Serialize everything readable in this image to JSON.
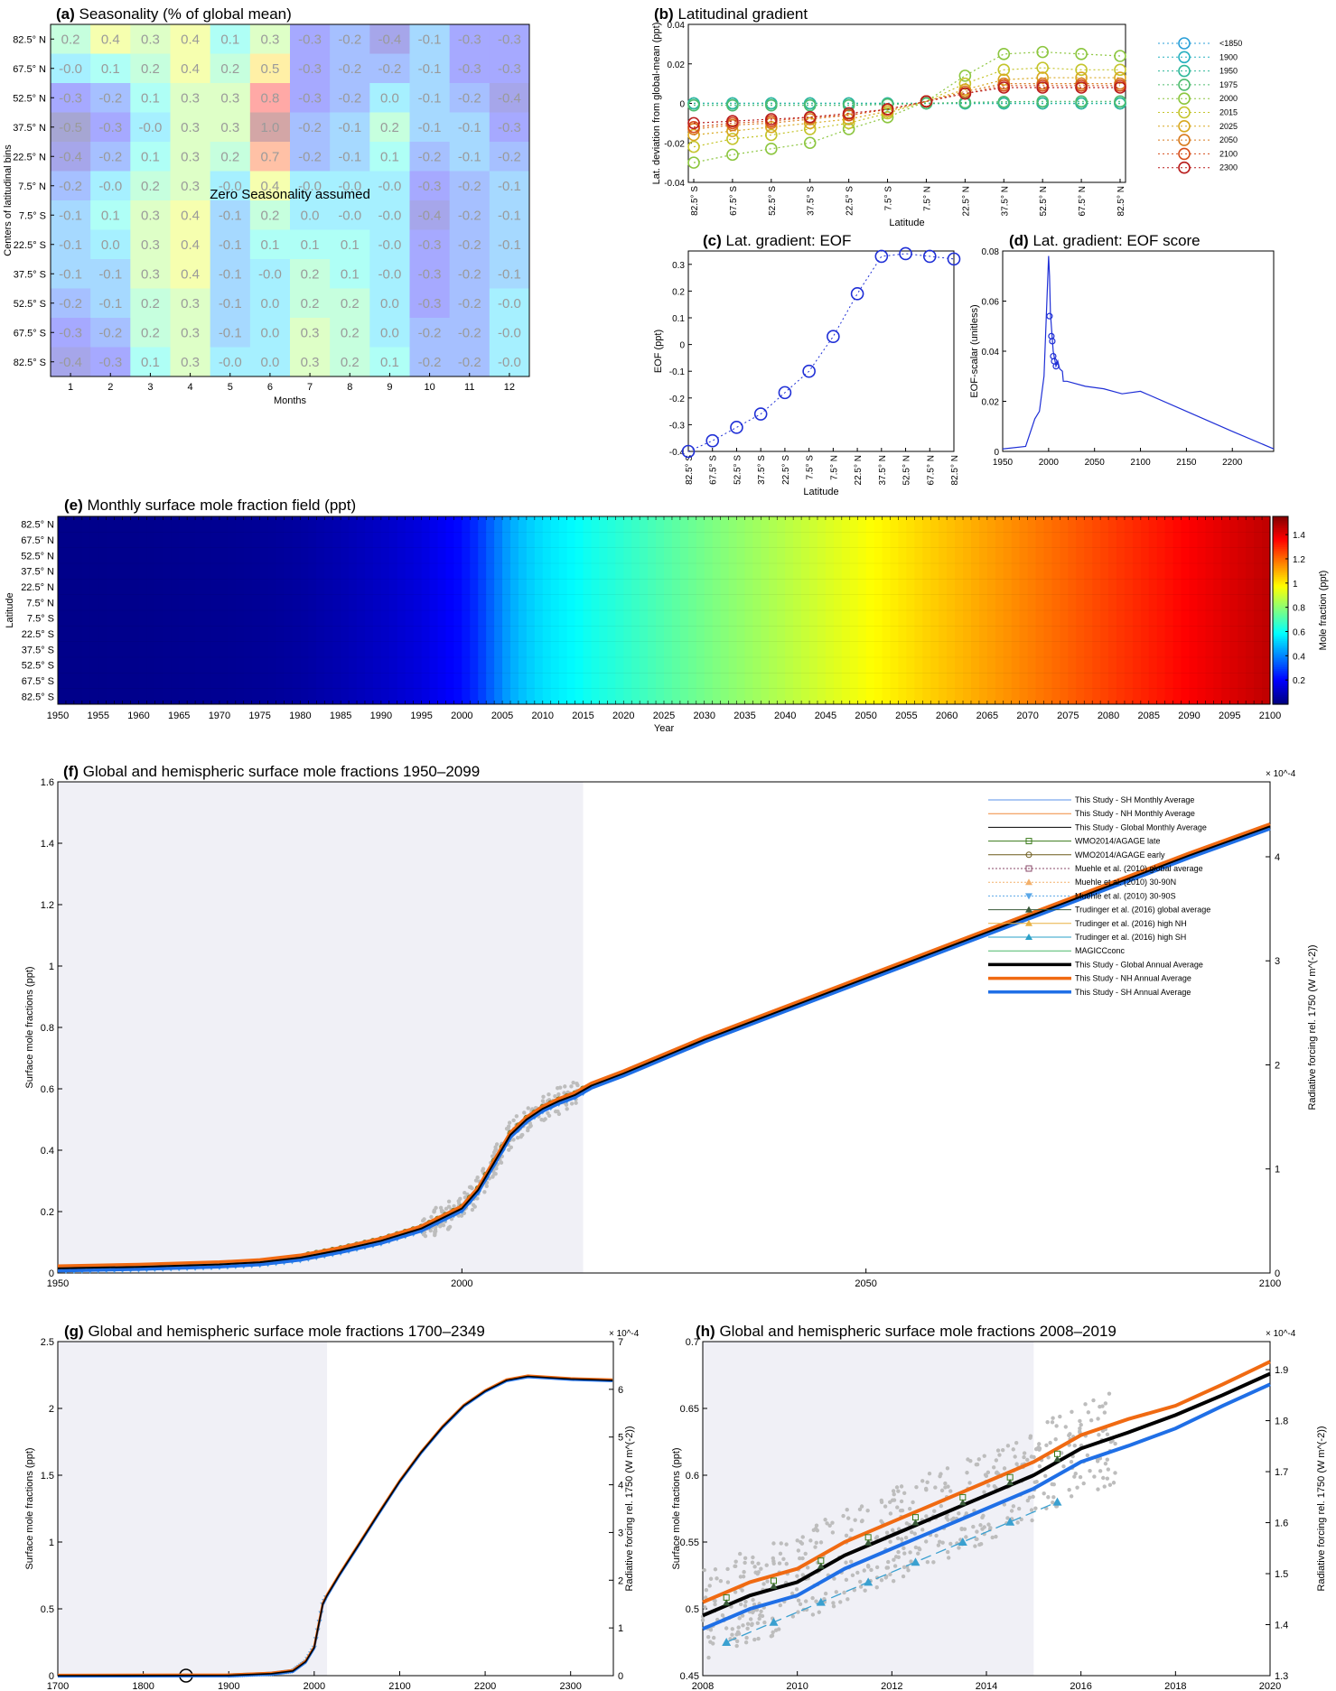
{
  "colors": {
    "his_shade": "#f0f0f6",
    "sh": "#1f6fe6",
    "nh": "#f06a12",
    "global": "#000000",
    "eof": "#1f2fd6"
  },
  "panels": {
    "a": {
      "letter": "(a)",
      "title": "Seasonality (% of global mean)",
      "xlabel": "Months",
      "ylabel": "Centers of latitudinal bins",
      "annotation": "Zero Seasonality assumed"
    },
    "b": {
      "letter": "(b)",
      "title": "Latitudinal gradient",
      "xlabel": "Latitude",
      "ylabel": "Lat. deviation from global-mean (ppt)"
    },
    "c": {
      "letter": "(c)",
      "title": "Lat. gradient: EOF",
      "xlabel": "Latitude",
      "ylabel": "EOF (ppt)"
    },
    "d": {
      "letter": "(d)",
      "title": "Lat. gradient: EOF score",
      "xlabel": "",
      "ylabel": "EOF-scalar (unitless)"
    },
    "e": {
      "letter": "(e)",
      "title": "Monthly surface mole fraction field (ppt)",
      "xlabel": "Year",
      "ylabel": "Latitude",
      "cbar_label": "Mole fraction (ppt)"
    },
    "f": {
      "letter": "(f)",
      "title": "Global and hemispheric surface mole fractions 1950–2099",
      "ylabel": "Surface mole fractions (ppt)",
      "y2label": "Radiative forcing rel. 1750 (W m^(-2))",
      "scale": "× 10^-4"
    },
    "g": {
      "letter": "(g)",
      "title": "Global and hemispheric surface mole fractions 1700–2349",
      "ylabel": "Surface mole fractions (ppt)",
      "y2label": "Radiative forcing rel. 1750 (W m^(-2))",
      "scale": "× 10^-4"
    },
    "h": {
      "letter": "(h)",
      "title": "Global and hemispheric surface mole fractions 2008–2019",
      "ylabel": "Surface mole fractions (ppt)",
      "y2label": "Radiative forcing rel. 1750 (W m^(-2))",
      "scale": "× 10^-4"
    }
  },
  "chart_data": [
    {
      "panel": "a",
      "type": "heatmap",
      "x_categories": [
        "1",
        "2",
        "3",
        "4",
        "5",
        "6",
        "7",
        "8",
        "9",
        "10",
        "11",
        "12"
      ],
      "y_categories": [
        "82.5° N",
        "67.5° N",
        "52.5° N",
        "37.5° N",
        "22.5° N",
        "7.5° N",
        "7.5° S",
        "22.5° S",
        "37.5° S",
        "52.5° S",
        "67.5° S",
        "82.5° S"
      ],
      "values": [
        [
          "0.2",
          "0.4",
          "0.3",
          "0.4",
          "0.1",
          "0.3",
          "-0.3",
          "-0.2",
          "-0.4",
          "-0.1",
          "-0.3",
          "-0.3"
        ],
        [
          "-0.0",
          "0.1",
          "0.2",
          "0.4",
          "0.2",
          "0.5",
          "-0.3",
          "-0.2",
          "-0.2",
          "-0.1",
          "-0.3",
          "-0.3"
        ],
        [
          "-0.3",
          "-0.2",
          "0.1",
          "0.3",
          "0.3",
          "0.8",
          "-0.3",
          "-0.2",
          "0.0",
          "-0.1",
          "-0.2",
          "-0.4"
        ],
        [
          "-0.5",
          "-0.3",
          "-0.0",
          "0.3",
          "0.3",
          "1.0",
          "-0.2",
          "-0.1",
          "0.2",
          "-0.1",
          "-0.1",
          "-0.3"
        ],
        [
          "-0.4",
          "-0.2",
          "0.1",
          "0.3",
          "0.2",
          "0.7",
          "-0.2",
          "-0.1",
          "0.1",
          "-0.2",
          "-0.1",
          "-0.2"
        ],
        [
          "-0.2",
          "-0.0",
          "0.2",
          "0.3",
          "-0.0",
          "0.4",
          "-0.0",
          "-0.0",
          "-0.0",
          "-0.3",
          "-0.2",
          "-0.1"
        ],
        [
          "-0.1",
          "0.1",
          "0.3",
          "0.4",
          "-0.1",
          "0.2",
          "0.0",
          "-0.0",
          "-0.0",
          "-0.4",
          "-0.2",
          "-0.1"
        ],
        [
          "-0.1",
          "0.0",
          "0.3",
          "0.4",
          "-0.1",
          "0.1",
          "0.1",
          "0.1",
          "-0.0",
          "-0.3",
          "-0.2",
          "-0.1"
        ],
        [
          "-0.1",
          "-0.1",
          "0.3",
          "0.4",
          "-0.1",
          "-0.0",
          "0.2",
          "0.1",
          "-0.0",
          "-0.3",
          "-0.2",
          "-0.1"
        ],
        [
          "-0.2",
          "-0.1",
          "0.2",
          "0.3",
          "-0.1",
          "0.0",
          "0.2",
          "0.2",
          "0.0",
          "-0.3",
          "-0.2",
          "-0.0"
        ],
        [
          "-0.3",
          "-0.2",
          "0.2",
          "0.3",
          "-0.1",
          "0.0",
          "0.3",
          "0.2",
          "0.0",
          "-0.2",
          "-0.2",
          "-0.0"
        ],
        [
          "-0.4",
          "-0.3",
          "0.1",
          "0.3",
          "-0.0",
          "0.0",
          "0.3",
          "0.2",
          "0.1",
          "-0.2",
          "-0.2",
          "-0.0"
        ]
      ]
    },
    {
      "panel": "b",
      "type": "line",
      "x": [
        "82.5° S",
        "67.5° S",
        "52.5° S",
        "37.5° S",
        "22.5° S",
        "7.5° S",
        "7.5° N",
        "22.5° N",
        "37.5° N",
        "52.5° N",
        "67.5° N",
        "82.5° N"
      ],
      "ylim": [
        -0.04,
        0.04
      ],
      "yticks": [
        "-0.04",
        "-0.02",
        "0",
        "0.02",
        "0.04"
      ],
      "series": [
        {
          "name": "<1850",
          "color": "#2a9fd8",
          "values": [
            0,
            0,
            0,
            0,
            0,
            0,
            0,
            0,
            0,
            0,
            0,
            0
          ]
        },
        {
          "name": "1900",
          "color": "#27b0c0",
          "values": [
            0,
            0,
            0,
            0,
            0,
            0,
            0,
            0,
            0,
            0,
            0,
            0
          ]
        },
        {
          "name": "1950",
          "color": "#2fb89a",
          "values": [
            0,
            0,
            0,
            0,
            0,
            0,
            0,
            0,
            0,
            0,
            0,
            0
          ]
        },
        {
          "name": "1975",
          "color": "#4ebc6e",
          "values": [
            -0.001,
            -0.001,
            -0.001,
            -0.001,
            -0.001,
            -0.0005,
            0,
            0.0005,
            0.0008,
            0.001,
            0.001,
            0.001
          ]
        },
        {
          "name": "2000",
          "color": "#8cc63f",
          "values": [
            -0.03,
            -0.026,
            -0.023,
            -0.02,
            -0.013,
            -0.007,
            0.001,
            0.014,
            0.025,
            0.026,
            0.025,
            0.024
          ]
        },
        {
          "name": "2015",
          "color": "#c4c42a",
          "values": [
            -0.022,
            -0.018,
            -0.016,
            -0.013,
            -0.01,
            -0.005,
            0.001,
            0.01,
            0.017,
            0.018,
            0.017,
            0.017
          ]
        },
        {
          "name": "2025",
          "color": "#d8a820",
          "values": [
            -0.016,
            -0.014,
            -0.012,
            -0.01,
            -0.008,
            -0.004,
            0.001,
            0.007,
            0.012,
            0.013,
            0.013,
            0.013
          ]
        },
        {
          "name": "2050",
          "color": "#d87a1e",
          "values": [
            -0.013,
            -0.011,
            -0.01,
            -0.008,
            -0.006,
            -0.003,
            0.001,
            0.006,
            0.01,
            0.01,
            0.01,
            0.01
          ]
        },
        {
          "name": "2100",
          "color": "#d64d1a",
          "values": [
            -0.012,
            -0.01,
            -0.009,
            -0.007,
            -0.006,
            -0.003,
            0.001,
            0.005,
            0.009,
            0.009,
            0.009,
            0.009
          ]
        },
        {
          "name": "2300",
          "color": "#b81c1c",
          "values": [
            -0.01,
            -0.009,
            -0.008,
            -0.007,
            -0.005,
            -0.003,
            0.001,
            0.005,
            0.008,
            0.008,
            0.008,
            0.008
          ]
        }
      ]
    },
    {
      "panel": "c",
      "type": "scatter",
      "x": [
        "82.5° S",
        "67.5° S",
        "52.5° S",
        "37.5° S",
        "22.5° S",
        "7.5° S",
        "7.5° N",
        "22.5° N",
        "37.5° N",
        "52.5° N",
        "67.5° N",
        "82.5° N"
      ],
      "values": [
        -0.4,
        -0.36,
        -0.31,
        -0.26,
        -0.18,
        -0.1,
        0.03,
        0.19,
        0.33,
        0.34,
        0.33,
        0.32
      ],
      "ylim": [
        -0.4,
        0.35
      ],
      "yticks": [
        "-0.4",
        "-0.3",
        "-0.2",
        "-0.1",
        "0",
        "0.1",
        "0.2",
        "0.3"
      ]
    },
    {
      "panel": "d",
      "type": "line",
      "x": [
        1950,
        1975,
        1985,
        1990,
        1995,
        2000,
        2001,
        2002,
        2005,
        2008,
        2010,
        2012,
        2015,
        2016,
        2020,
        2040,
        2060,
        2080,
        2100,
        2150,
        2200,
        2245
      ],
      "values": [
        0.001,
        0.002,
        0.013,
        0.016,
        0.03,
        0.078,
        0.07,
        0.055,
        0.04,
        0.034,
        0.036,
        0.033,
        0.032,
        0.028,
        0.028,
        0.026,
        0.025,
        0.023,
        0.024,
        0.016,
        0.008,
        0.001
      ],
      "xticks": [
        "1950",
        "2000",
        "2050",
        "2100",
        "2150",
        "2200"
      ],
      "ylim": [
        0,
        0.08
      ],
      "yticks": [
        "0",
        "0.02",
        "0.04",
        "0.06",
        "0.08"
      ]
    },
    {
      "panel": "e",
      "type": "heatmap",
      "y_categories": [
        "82.5° N",
        "67.5° N",
        "52.5° N",
        "37.5° N",
        "22.5° N",
        "7.5° N",
        "7.5° S",
        "22.5° S",
        "37.5° S",
        "52.5° S",
        "67.5° S",
        "82.5° S"
      ],
      "xticks": [
        "1950",
        "1955",
        "1960",
        "1965",
        "1970",
        "1975",
        "1980",
        "1985",
        "1990",
        "1995",
        "2000",
        "2005",
        "2010",
        "2015",
        "2020",
        "2025",
        "2030",
        "2035",
        "2040",
        "2045",
        "2050",
        "2055",
        "2060",
        "2065",
        "2070",
        "2075",
        "2080",
        "2085",
        "2090",
        "2095",
        "2100"
      ],
      "colorbar_ticks": [
        "0.2",
        "0.4",
        "0.6",
        "0.8",
        "1",
        "1.2",
        "1.4"
      ],
      "colorbar_range": [
        0,
        1.55
      ]
    },
    {
      "panel": "f",
      "type": "line",
      "xlim": [
        1950,
        2100
      ],
      "xticks": [
        "1950",
        "2000",
        "2050",
        "2100"
      ],
      "ylim": [
        0,
        1.6
      ],
      "yticks": [
        "0",
        "0.2",
        "0.4",
        "0.6",
        "0.8",
        "1",
        "1.2",
        "1.4",
        "1.6"
      ],
      "y2ticks": [
        "0",
        "1",
        "2",
        "3",
        "4"
      ],
      "shade_until": 2015,
      "series": [
        {
          "name": "This Study - SH Monthly Average"
        },
        {
          "name": "This Study - NH Monthly Average"
        },
        {
          "name": "This Study - Global Monthly Average"
        },
        {
          "name": "WMO2014/AGAGE late"
        },
        {
          "name": "WMO2014/AGAGE early"
        },
        {
          "name": "Muehle et al. (2010) global average"
        },
        {
          "name": "Muehle et al. (2010) 30-90N"
        },
        {
          "name": "Muehle et al. (2010) 30-90S"
        },
        {
          "name": "Trudinger et al. (2016) global average"
        },
        {
          "name": "Trudinger et al. (2016) high NH"
        },
        {
          "name": "Trudinger et al. (2016) high SH"
        },
        {
          "name": "MAGICCconc"
        },
        {
          "name": "This Study - Global Annual Average"
        },
        {
          "name": "This Study - NH Annual Average"
        },
        {
          "name": "This Study - SH Annual Average"
        }
      ],
      "global_x": [
        1950,
        1960,
        1970,
        1975,
        1980,
        1985,
        1990,
        1995,
        2000,
        2002,
        2004,
        2006,
        2008,
        2010,
        2012,
        2014,
        2016,
        2020,
        2030,
        2040,
        2050,
        2060,
        2070,
        2080,
        2090,
        2100
      ],
      "global_y": [
        0.015,
        0.02,
        0.028,
        0.035,
        0.05,
        0.075,
        0.105,
        0.145,
        0.21,
        0.27,
        0.36,
        0.45,
        0.5,
        0.535,
        0.56,
        0.58,
        0.61,
        0.65,
        0.76,
        0.86,
        0.96,
        1.06,
        1.16,
        1.26,
        1.36,
        1.455
      ]
    },
    {
      "panel": "g",
      "type": "line",
      "xlim": [
        1700,
        2350
      ],
      "xticks": [
        "1700",
        "1800",
        "1900",
        "2000",
        "2100",
        "2200",
        "2300"
      ],
      "ylim": [
        0,
        2.5
      ],
      "yticks": [
        "0",
        "0.5",
        "1",
        "1.5",
        "2",
        "2.5"
      ],
      "y2ticks": [
        "0",
        "1",
        "2",
        "3",
        "4",
        "5",
        "6",
        "7"
      ],
      "shade_until": 2015,
      "global_x": [
        1700,
        1900,
        1950,
        1975,
        1990,
        2000,
        2010,
        2015,
        2030,
        2050,
        2075,
        2100,
        2125,
        2150,
        2175,
        2200,
        2225,
        2250,
        2275,
        2300,
        2349
      ],
      "global_y": [
        0.0,
        0.002,
        0.015,
        0.035,
        0.105,
        0.21,
        0.535,
        0.6,
        0.76,
        0.96,
        1.21,
        1.455,
        1.67,
        1.86,
        2.02,
        2.13,
        2.21,
        2.24,
        2.23,
        2.22,
        2.21
      ]
    },
    {
      "panel": "h",
      "type": "line",
      "xlim": [
        2008,
        2020
      ],
      "xticks": [
        "2008",
        "2010",
        "2012",
        "2014",
        "2016",
        "2018",
        "2020"
      ],
      "ylim": [
        0.45,
        0.7
      ],
      "yticks": [
        "0.45",
        "0.5",
        "0.55",
        "0.6",
        "0.65",
        "0.7"
      ],
      "y2ticks": [
        "1.3",
        "1.4",
        "1.5",
        "1.6",
        "1.7",
        "1.8",
        "1.9"
      ],
      "shade_until": 2015,
      "series": [
        {
          "name": "This Study - NH Annual Average",
          "x": [
            2008,
            2009,
            2010,
            2011,
            2012,
            2013,
            2014,
            2015,
            2016,
            2017,
            2018,
            2019,
            2020
          ],
          "values": [
            0.505,
            0.52,
            0.53,
            0.55,
            0.565,
            0.58,
            0.595,
            0.61,
            0.63,
            0.642,
            0.652,
            0.668,
            0.685
          ]
        },
        {
          "name": "This Study - Global Annual Average",
          "x": [
            2008,
            2009,
            2010,
            2011,
            2012,
            2013,
            2014,
            2015,
            2016,
            2017,
            2018,
            2019,
            2020
          ],
          "values": [
            0.495,
            0.51,
            0.52,
            0.54,
            0.555,
            0.57,
            0.585,
            0.6,
            0.62,
            0.632,
            0.645,
            0.66,
            0.676
          ]
        },
        {
          "name": "This Study - SH Annual Average",
          "x": [
            2008,
            2009,
            2010,
            2011,
            2012,
            2013,
            2014,
            2015,
            2016,
            2017,
            2018,
            2019,
            2020
          ],
          "values": [
            0.485,
            0.5,
            0.51,
            0.53,
            0.545,
            0.56,
            0.575,
            0.59,
            0.61,
            0.622,
            0.635,
            0.652,
            0.668
          ]
        },
        {
          "name": "Trudinger et al. (2016) high SH",
          "x": [
            2008.5,
            2009.5,
            2010.5,
            2011.5,
            2012.5,
            2013.5,
            2014.5,
            2015.5
          ],
          "values": [
            0.475,
            0.49,
            0.505,
            0.52,
            0.535,
            0.55,
            0.565,
            0.58
          ]
        }
      ]
    }
  ]
}
